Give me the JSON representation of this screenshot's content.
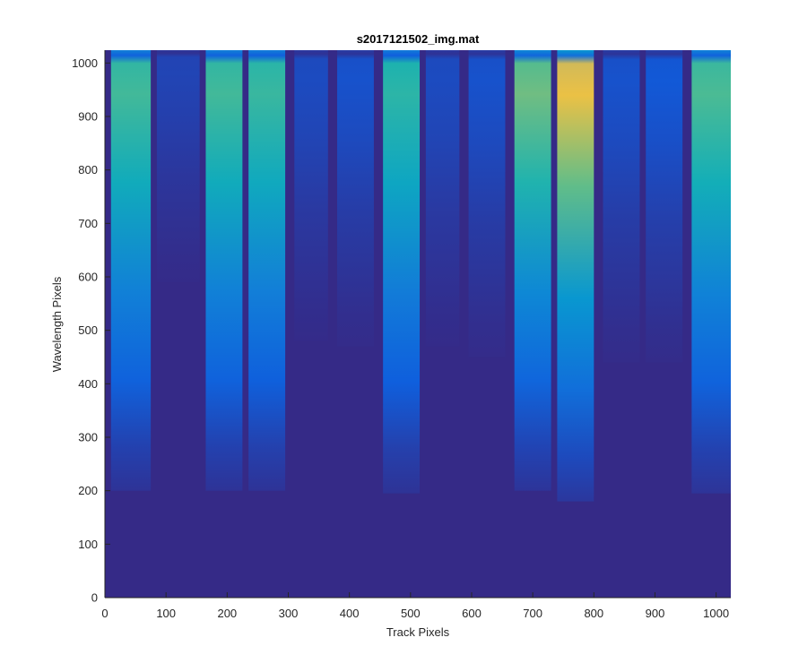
{
  "chart_data": {
    "type": "heatmap",
    "title": "s2017121502_img.mat",
    "xlabel": "Track Pixels",
    "ylabel": "Wavelength Pixels",
    "xlim": [
      0,
      1024
    ],
    "ylim": [
      0,
      1024
    ],
    "x_ticks": [
      0,
      100,
      200,
      300,
      400,
      500,
      600,
      700,
      800,
      900,
      1000
    ],
    "y_ticks": [
      0,
      100,
      200,
      300,
      400,
      500,
      600,
      700,
      800,
      900,
      1000
    ],
    "colormap": "parula",
    "background_color": "#352a87",
    "grid": false,
    "tracks": [
      {
        "x_start": 10,
        "x_end": 75,
        "peak_level": 0.7,
        "edge_y": 200
      },
      {
        "x_start": 85,
        "x_end": 155,
        "peak_level": 0.08,
        "edge_y": 590
      },
      {
        "x_start": 165,
        "x_end": 225,
        "peak_level": 0.7,
        "edge_y": 200
      },
      {
        "x_start": 235,
        "x_end": 295,
        "peak_level": 0.68,
        "edge_y": 200
      },
      {
        "x_start": 310,
        "x_end": 365,
        "peak_level": 0.1,
        "edge_y": 480
      },
      {
        "x_start": 380,
        "x_end": 440,
        "peak_level": 0.12,
        "edge_y": 470
      },
      {
        "x_start": 455,
        "x_end": 515,
        "peak_level": 0.65,
        "edge_y": 195
      },
      {
        "x_start": 525,
        "x_end": 580,
        "peak_level": 0.1,
        "edge_y": 470
      },
      {
        "x_start": 595,
        "x_end": 655,
        "peak_level": 0.12,
        "edge_y": 450
      },
      {
        "x_start": 670,
        "x_end": 730,
        "peak_level": 0.78,
        "edge_y": 200
      },
      {
        "x_start": 740,
        "x_end": 800,
        "peak_level": 0.95,
        "edge_y": 180
      },
      {
        "x_start": 815,
        "x_end": 875,
        "peak_level": 0.12,
        "edge_y": 440
      },
      {
        "x_start": 885,
        "x_end": 945,
        "peak_level": 0.14,
        "edge_y": 440
      },
      {
        "x_start": 960,
        "x_end": 1024,
        "peak_level": 0.72,
        "edge_y": 195
      }
    ]
  }
}
